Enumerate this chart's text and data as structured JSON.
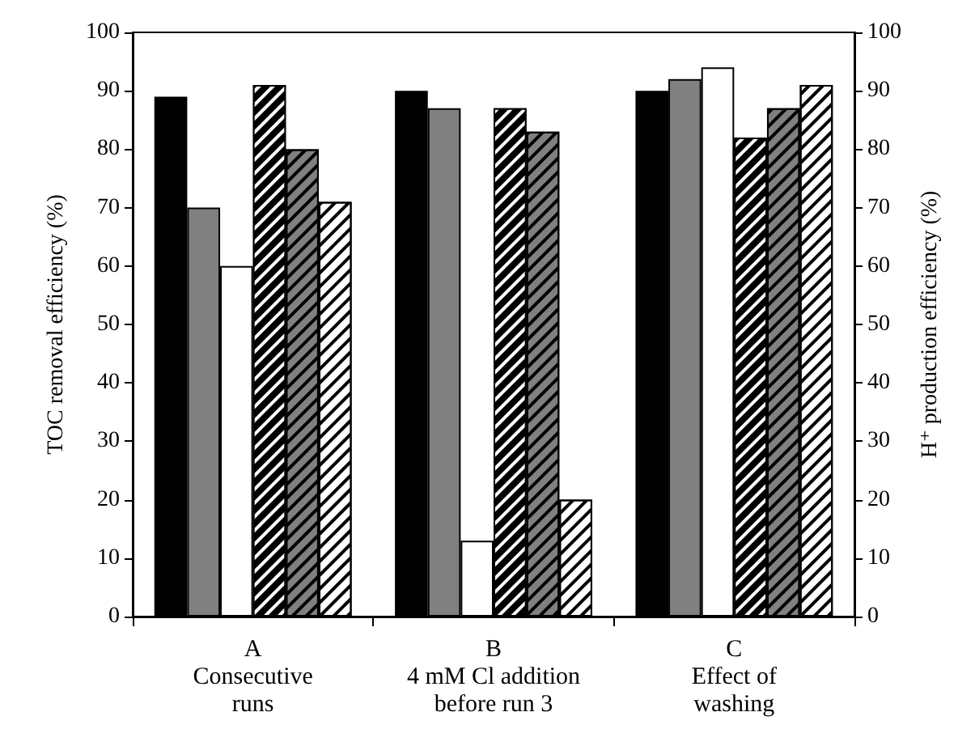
{
  "chart_data": {
    "type": "bar",
    "categories": [
      "A\nConsecutive\nruns",
      "B\n4 mM Cl addition\nbefore run 3",
      "C\nEffect of\nwashing"
    ],
    "series": [
      {
        "color": "#000000",
        "values": [
          89,
          90,
          90
        ]
      },
      {
        "color": "#808080",
        "values": [
          70,
          87,
          92
        ]
      },
      {
        "color": "#ffffff",
        "values": [
          60,
          13,
          94
        ]
      },
      {
        "color": "#000000",
        "axis": "y2",
        "values": [
          91,
          87,
          82
        ]
      },
      {
        "color": "#808080",
        "axis": "y2",
        "values": [
          80,
          83,
          87
        ]
      },
      {
        "color": "#ffffff",
        "axis": "y2",
        "values": [
          71,
          20,
          91
        ]
      }
    ],
    "ylabel": "TOC removal efficiency (%)",
    "y2label": "H⁺ production efficiency (%)",
    "ylim": [
      0,
      100
    ],
    "yticks": [
      0,
      10,
      20,
      30,
      40,
      50,
      60,
      70,
      80,
      90,
      100
    ],
    "y2lim": [
      0,
      100
    ],
    "y2ticks": [
      0,
      10,
      20,
      30,
      40,
      50,
      60,
      70,
      80,
      90,
      100
    ],
    "grid": false
  }
}
